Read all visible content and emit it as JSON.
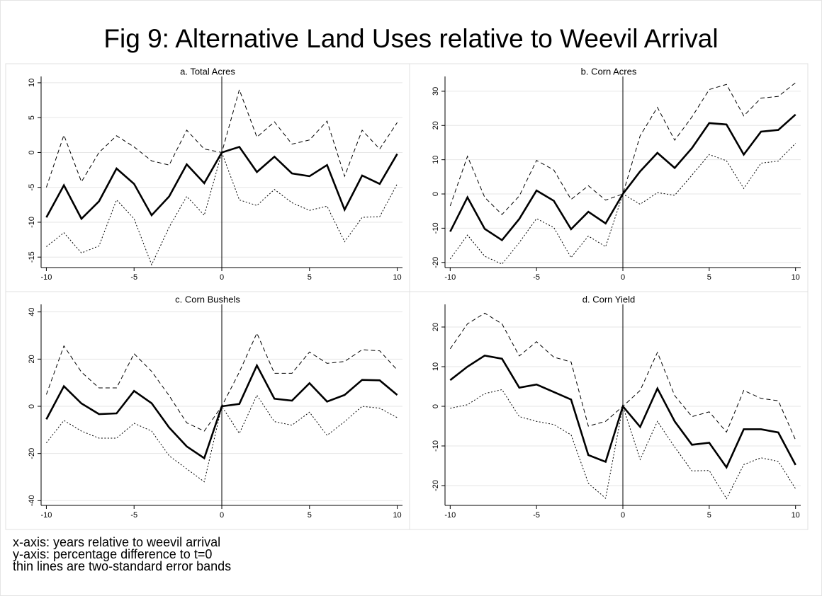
{
  "title": "Fig 9: Alternative Land Uses relative to Weevil Arrival",
  "notes": [
    "x-axis: years relative to weevil arrival",
    "y-axis: percentage difference to t=0",
    "thin lines are two-standard error bands"
  ],
  "chart_data": [
    {
      "type": "line",
      "title": "a. Total Acres",
      "x": [
        -10,
        -9,
        -8,
        -7,
        -6,
        -5,
        -4,
        -3,
        -2,
        -1,
        0,
        1,
        2,
        3,
        4,
        5,
        6,
        7,
        8,
        9,
        10
      ],
      "xlim": [
        -10.3,
        10.3
      ],
      "xticks": [
        -10,
        -5,
        0,
        5,
        10
      ],
      "vline": 0,
      "ylim": [
        -16.5,
        10.5
      ],
      "yticks": [
        -15,
        -10,
        -5,
        0,
        5,
        10
      ],
      "grid": true,
      "series": [
        {
          "style": "solid",
          "color": "#000000",
          "values": [
            -9.3,
            -4.7,
            -9.5,
            -7,
            -2.3,
            -4.5,
            -9,
            -6.3,
            -1.7,
            -4.4,
            0,
            0.8,
            -2.8,
            -0.6,
            -3,
            -3.4,
            -1.8,
            -8.2,
            -3.3,
            -4.5,
            -0.2
          ]
        },
        {
          "style": "dashed",
          "color": "#000000",
          "values": [
            -5,
            2.5,
            -4.2,
            0,
            2.4,
            0.8,
            -1.2,
            -1.8,
            3.2,
            0.5,
            0,
            9,
            2.2,
            4.4,
            1.2,
            1.8,
            4.5,
            -3.4,
            3.2,
            0.5,
            4.3
          ]
        },
        {
          "style": "dotted",
          "color": "#000000",
          "values": [
            -13.5,
            -11.5,
            -14.4,
            -13.4,
            -6.8,
            -9.5,
            -16.1,
            -10.7,
            -6.3,
            -9,
            0,
            -6.8,
            -7.6,
            -5.3,
            -7.2,
            -8.3,
            -7.7,
            -12.8,
            -9.3,
            -9.2,
            -4.5
          ]
        }
      ]
    },
    {
      "type": "line",
      "title": "b. Corn Acres",
      "x": [
        -10,
        -9,
        -8,
        -7,
        -6,
        -5,
        -4,
        -3,
        -2,
        -1,
        0,
        1,
        2,
        3,
        4,
        5,
        6,
        7,
        8,
        9,
        10
      ],
      "xlim": [
        -10.3,
        10.3
      ],
      "xticks": [
        -10,
        -5,
        0,
        5,
        10
      ],
      "vline": 0,
      "ylim": [
        -21.5,
        33.5
      ],
      "yticks": [
        -20,
        -10,
        0,
        10,
        20,
        30
      ],
      "grid": true,
      "series": [
        {
          "style": "solid",
          "color": "#000000",
          "values": [
            -11,
            -1,
            -10.2,
            -13.5,
            -7.3,
            1,
            -2,
            -10.3,
            -5.2,
            -8.6,
            0,
            6.6,
            12,
            7.6,
            13.4,
            20.7,
            20.3,
            11.5,
            18.2,
            18.7,
            23.2
          ]
        },
        {
          "style": "dashed",
          "color": "#000000",
          "values": [
            -3.5,
            11,
            -1,
            -6,
            -0.6,
            9.8,
            7,
            -1.6,
            2.4,
            -1.8,
            0,
            17,
            25.3,
            15.7,
            22.5,
            30.5,
            32,
            22.8,
            28,
            28.5,
            32.5
          ]
        },
        {
          "style": "dotted",
          "color": "#000000",
          "values": [
            -19,
            -12,
            -18.2,
            -20.5,
            -14.2,
            -7.2,
            -9.8,
            -18.6,
            -12.3,
            -15.4,
            0,
            -3,
            0.4,
            -0.4,
            5.5,
            11.5,
            9.7,
            1.6,
            9,
            9.6,
            14.8
          ]
        }
      ]
    },
    {
      "type": "line",
      "title": "c. Corn Bushels",
      "x": [
        -10,
        -9,
        -8,
        -7,
        -6,
        -5,
        -4,
        -3,
        -2,
        -1,
        0,
        1,
        2,
        3,
        4,
        5,
        6,
        7,
        8,
        9,
        10
      ],
      "xlim": [
        -10.3,
        10.3
      ],
      "xticks": [
        -10,
        -5,
        0,
        5,
        10
      ],
      "vline": 0,
      "ylim": [
        -42,
        42
      ],
      "yticks": [
        -40,
        -20,
        0,
        20,
        40
      ],
      "grid": true,
      "series": [
        {
          "style": "solid",
          "color": "#000000",
          "values": [
            -5.5,
            8.5,
            1.2,
            -3.3,
            -3,
            6.5,
            1.3,
            -9,
            -17,
            -22,
            0,
            1,
            17.3,
            3.2,
            2.4,
            9.8,
            2,
            4.8,
            11.2,
            11,
            4.8
          ]
        },
        {
          "style": "dashed",
          "color": "#000000",
          "values": [
            5,
            25.6,
            14.5,
            7.8,
            7.8,
            22.3,
            14.8,
            4.5,
            -7,
            -10.5,
            0,
            14.5,
            31,
            14,
            14,
            23,
            18.2,
            19,
            24,
            23.5,
            15.4
          ]
        },
        {
          "style": "dotted",
          "color": "#000000",
          "values": [
            -15.5,
            -6,
            -10.5,
            -13.5,
            -13.5,
            -7.2,
            -10.5,
            -21,
            -26.5,
            -32,
            0,
            -11.5,
            4.7,
            -6.5,
            -8,
            -2.5,
            -12.3,
            -6.5,
            0,
            -0.8,
            -4.8
          ]
        }
      ]
    },
    {
      "type": "line",
      "title": "d. Corn Yield",
      "x": [
        -10,
        -9,
        -8,
        -7,
        -6,
        -5,
        -4,
        -3,
        -2,
        -1,
        0,
        1,
        2,
        3,
        4,
        5,
        6,
        7,
        8,
        9,
        10
      ],
      "xlim": [
        -10.3,
        10.3
      ],
      "xticks": [
        -10,
        -5,
        0,
        5,
        10
      ],
      "vline": 0,
      "ylim": [
        -25,
        25
      ],
      "yticks": [
        -20,
        -10,
        0,
        10,
        20
      ],
      "grid": true,
      "series": [
        {
          "style": "solid",
          "color": "#000000",
          "values": [
            6.6,
            10,
            12.8,
            12,
            4.7,
            5.5,
            3.6,
            1.7,
            -12.3,
            -14,
            0,
            -5.2,
            4.5,
            -3.8,
            -9.7,
            -9.2,
            -15.4,
            -5.8,
            -5.8,
            -6.6,
            -14.8
          ]
        },
        {
          "style": "dashed",
          "color": "#000000",
          "values": [
            14.5,
            20.8,
            23.5,
            20.8,
            12.7,
            16.3,
            12.4,
            11.2,
            -5,
            -3.8,
            0,
            4,
            13.6,
            2.7,
            -2.6,
            -1.4,
            -6.5,
            4,
            2,
            1.4,
            -8.5
          ]
        },
        {
          "style": "dotted",
          "color": "#000000",
          "values": [
            -0.5,
            0.4,
            3.2,
            4.2,
            -2.6,
            -3.8,
            -4.6,
            -7.2,
            -19.4,
            -23.2,
            0,
            -13.4,
            -3.8,
            -10.3,
            -16.3,
            -16.2,
            -23.3,
            -14.7,
            -13,
            -13.9,
            -20.8
          ]
        }
      ]
    }
  ]
}
